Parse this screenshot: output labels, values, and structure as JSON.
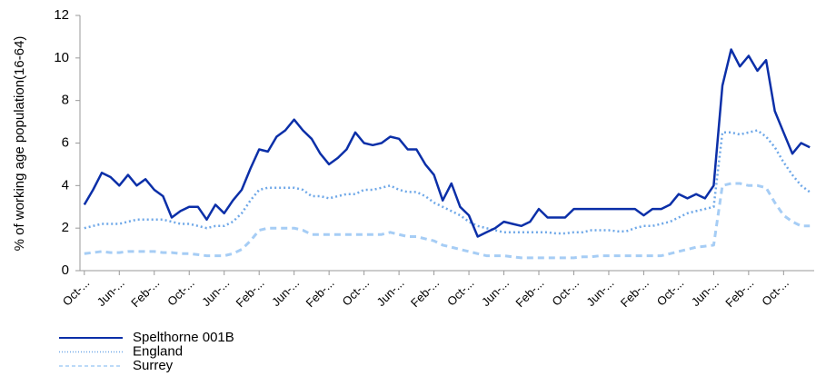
{
  "chart_data": {
    "type": "line",
    "y_label": "% of working age population(16-64)",
    "categories": [
      "Oct-...",
      null,
      null,
      null,
      "Jun-...",
      null,
      null,
      null,
      "Feb-...",
      null,
      null,
      null,
      "Oct-...",
      null,
      null,
      null,
      "Jun-...",
      null,
      null,
      null,
      "Feb-...",
      null,
      null,
      null,
      "Jun-...",
      null,
      null,
      null,
      "Feb-...",
      null,
      null,
      null,
      "Oct-...",
      null,
      null,
      null,
      "Jun-...",
      null,
      null,
      null,
      "Feb-...",
      null,
      null,
      null,
      "Oct-...",
      null,
      null,
      null,
      "Jun-...",
      null,
      null,
      null,
      "Feb-...",
      null,
      null,
      null,
      "Oct-...",
      null,
      null,
      null,
      "Jun-...",
      null,
      null,
      null,
      "Feb-...",
      null,
      null,
      null,
      "Oct-...",
      null,
      null,
      null,
      "Jun-...",
      null,
      null,
      null,
      "Feb-...",
      null,
      null,
      null,
      "Oct-...",
      null,
      null,
      null
    ],
    "series": [
      {
        "name": "Spelthorne 001B",
        "color": "#0b2fa8",
        "style": "solid",
        "values": [
          3.1,
          3.8,
          4.6,
          4.4,
          4.0,
          4.5,
          4.0,
          4.3,
          3.8,
          3.5,
          2.5,
          2.8,
          3.0,
          3.0,
          2.4,
          3.1,
          2.7,
          3.3,
          3.8,
          4.8,
          5.7,
          5.6,
          6.3,
          6.6,
          7.1,
          6.6,
          6.2,
          5.5,
          5.0,
          5.3,
          5.7,
          6.5,
          6.0,
          5.9,
          6.0,
          6.3,
          6.2,
          5.7,
          5.7,
          5.0,
          4.5,
          3.3,
          4.1,
          3.0,
          2.6,
          1.6,
          1.8,
          2.0,
          2.3,
          2.2,
          2.1,
          2.3,
          2.9,
          2.5,
          2.5,
          2.5,
          2.9,
          2.9,
          2.9,
          2.9,
          2.9,
          2.9,
          2.9,
          2.9,
          2.6,
          2.9,
          2.9,
          3.1,
          3.6,
          3.4,
          3.6,
          3.4,
          4.0,
          8.7,
          10.4,
          9.6,
          10.1,
          9.4,
          9.9,
          7.5,
          6.5,
          5.5,
          6.0,
          5.8
        ]
      },
      {
        "name": "England",
        "color": "#6fa8e8",
        "style": "dotted",
        "values": [
          2.0,
          2.1,
          2.2,
          2.2,
          2.2,
          2.3,
          2.4,
          2.4,
          2.4,
          2.4,
          2.3,
          2.2,
          2.2,
          2.1,
          2.0,
          2.1,
          2.1,
          2.3,
          2.7,
          3.3,
          3.8,
          3.9,
          3.9,
          3.9,
          3.9,
          3.8,
          3.5,
          3.5,
          3.4,
          3.5,
          3.6,
          3.6,
          3.8,
          3.8,
          3.9,
          4.0,
          3.8,
          3.7,
          3.7,
          3.5,
          3.2,
          3.0,
          2.8,
          2.6,
          2.3,
          2.1,
          2.0,
          1.9,
          1.8,
          1.8,
          1.8,
          1.8,
          1.8,
          1.8,
          1.75,
          1.75,
          1.8,
          1.8,
          1.9,
          1.9,
          1.9,
          1.85,
          1.85,
          2.0,
          2.1,
          2.1,
          2.2,
          2.3,
          2.5,
          2.7,
          2.8,
          2.9,
          3.0,
          6.5,
          6.5,
          6.4,
          6.5,
          6.6,
          6.3,
          5.8,
          5.1,
          4.5,
          4.0,
          3.7
        ]
      },
      {
        "name": "Surrey",
        "color": "#a6cdf5",
        "style": "dashed",
        "values": [
          0.8,
          0.85,
          0.9,
          0.85,
          0.85,
          0.9,
          0.9,
          0.9,
          0.9,
          0.85,
          0.85,
          0.8,
          0.8,
          0.75,
          0.7,
          0.7,
          0.7,
          0.8,
          1.0,
          1.4,
          1.9,
          2.0,
          2.0,
          2.0,
          2.0,
          1.9,
          1.7,
          1.7,
          1.7,
          1.7,
          1.7,
          1.7,
          1.7,
          1.7,
          1.7,
          1.8,
          1.7,
          1.6,
          1.6,
          1.5,
          1.4,
          1.2,
          1.1,
          1.0,
          0.9,
          0.8,
          0.7,
          0.7,
          0.7,
          0.65,
          0.6,
          0.6,
          0.6,
          0.6,
          0.6,
          0.6,
          0.6,
          0.65,
          0.65,
          0.7,
          0.7,
          0.7,
          0.7,
          0.7,
          0.7,
          0.7,
          0.7,
          0.8,
          0.9,
          1.0,
          1.1,
          1.15,
          1.2,
          4.0,
          4.1,
          4.1,
          4.0,
          4.0,
          3.9,
          3.2,
          2.6,
          2.3,
          2.1,
          2.1
        ]
      }
    ],
    "ylim": [
      0,
      12
    ],
    "yticks": [
      0,
      2,
      4,
      6,
      8,
      10,
      12
    ],
    "grid": false
  }
}
